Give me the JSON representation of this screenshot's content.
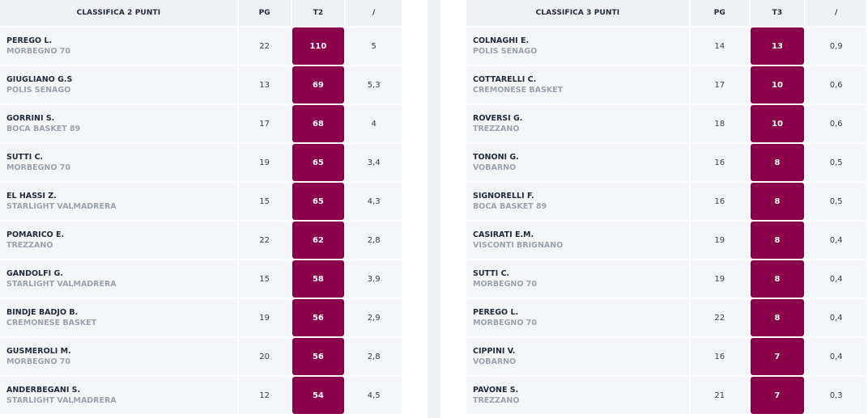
{
  "colors": {
    "accent": "#8b004b",
    "header_bg": "#eef1f5",
    "row_bg": "#f4f6f9",
    "team_text": "#9aa2ad"
  },
  "left": {
    "headers": [
      "CLASSIFICA 2 PUNTI",
      "PG",
      "T2",
      "/"
    ],
    "rows": [
      {
        "name": "PEREGO L.",
        "team": "MORBEGNO 70",
        "pg": "22",
        "stat": "110",
        "ratio": "5"
      },
      {
        "name": "GIUGLIANO G.S",
        "team": "POLIS SENAGO",
        "pg": "13",
        "stat": "69",
        "ratio": "5,3"
      },
      {
        "name": "GORRINI S.",
        "team": "BOCA BASKET 89",
        "pg": "17",
        "stat": "68",
        "ratio": "4"
      },
      {
        "name": "SUTTI C.",
        "team": "MORBEGNO 70",
        "pg": "19",
        "stat": "65",
        "ratio": "3,4"
      },
      {
        "name": "EL HASSI Z.",
        "team": "STARLIGHT VALMADRERA",
        "pg": "15",
        "stat": "65",
        "ratio": "4,3"
      },
      {
        "name": "POMARICO E.",
        "team": "TREZZANO",
        "pg": "22",
        "stat": "62",
        "ratio": "2,8"
      },
      {
        "name": "GANDOLFI G.",
        "team": "STARLIGHT VALMADRERA",
        "pg": "15",
        "stat": "58",
        "ratio": "3,9"
      },
      {
        "name": "BINDJE BADJO B.",
        "team": "CREMONESE BASKET",
        "pg": "19",
        "stat": "56",
        "ratio": "2,9"
      },
      {
        "name": "GUSMEROLI M.",
        "team": "MORBEGNO 70",
        "pg": "20",
        "stat": "56",
        "ratio": "2,8"
      },
      {
        "name": "ANDERBEGANI S.",
        "team": "STARLIGHT VALMADRERA",
        "pg": "12",
        "stat": "54",
        "ratio": "4,5"
      }
    ]
  },
  "right": {
    "headers": [
      "CLASSIFICA 3 PUNTI",
      "PG",
      "T3",
      "/"
    ],
    "rows": [
      {
        "name": "COLNAGHI E.",
        "team": "POLIS SENAGO",
        "pg": "14",
        "stat": "13",
        "ratio": "0,9"
      },
      {
        "name": "COTTARELLI C.",
        "team": "CREMONESE BASKET",
        "pg": "17",
        "stat": "10",
        "ratio": "0,6"
      },
      {
        "name": "ROVERSI G.",
        "team": "TREZZANO",
        "pg": "18",
        "stat": "10",
        "ratio": "0,6"
      },
      {
        "name": "TONONI G.",
        "team": "VOBARNO",
        "pg": "16",
        "stat": "8",
        "ratio": "0,5"
      },
      {
        "name": "SIGNORELLI F.",
        "team": "BOCA BASKET 89",
        "pg": "16",
        "stat": "8",
        "ratio": "0,5"
      },
      {
        "name": "CASIRATI E.M.",
        "team": "VISCONTI BRIGNANO",
        "pg": "19",
        "stat": "8",
        "ratio": "0,4"
      },
      {
        "name": "SUTTI C.",
        "team": "MORBEGNO 70",
        "pg": "19",
        "stat": "8",
        "ratio": "0,4"
      },
      {
        "name": "PEREGO L.",
        "team": "MORBEGNO 70",
        "pg": "22",
        "stat": "8",
        "ratio": "0,4"
      },
      {
        "name": "CIPPINI V.",
        "team": "VOBARNO",
        "pg": "16",
        "stat": "7",
        "ratio": "0,4"
      },
      {
        "name": "PAVONE S.",
        "team": "TREZZANO",
        "pg": "21",
        "stat": "7",
        "ratio": "0,3"
      }
    ]
  }
}
